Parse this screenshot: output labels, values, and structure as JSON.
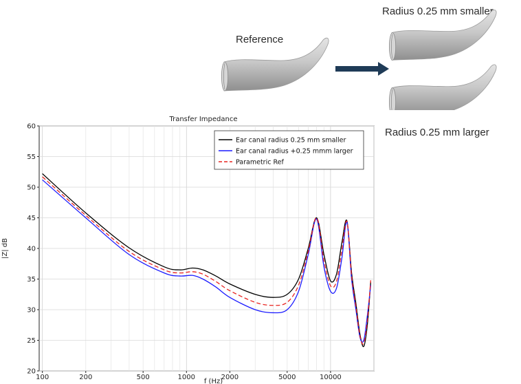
{
  "illustration": {
    "reference_label": "Reference",
    "smaller_label": "Radius 0.25 mm smaller",
    "larger_label": "Radius 0.25 mm larger",
    "arrow_color": "#1f3b57",
    "canal_color": "#c9c9c9"
  },
  "chart_data": {
    "type": "line",
    "title": "Transfer Impedance",
    "xlabel": "f (Hz)",
    "ylabel": "|Z| dB",
    "xscale": "log",
    "xlim": [
      95,
      20000
    ],
    "ylim": [
      20,
      60
    ],
    "x_ticks": [
      100,
      200,
      500,
      1000,
      2000,
      5000,
      10000
    ],
    "y_ticks": [
      20,
      25,
      30,
      35,
      40,
      45,
      50,
      55,
      60
    ],
    "grid": true,
    "legend_position": "top-right",
    "series": [
      {
        "name": "Ear canal radius 0.25 mm smaller",
        "color": "#000000",
        "dash": "solid",
        "x": [
          100,
          200,
          400,
          700,
          900,
          1100,
          1300,
          1600,
          2000,
          3000,
          4000,
          5000,
          6000,
          7000,
          8000,
          9000,
          10000,
          11000,
          12000,
          13000,
          14000,
          15000,
          16000,
          17000,
          18000,
          19000
        ],
        "y": [
          52.2,
          45.8,
          40.1,
          37.0,
          36.5,
          36.8,
          36.5,
          35.5,
          34.2,
          32.5,
          32.0,
          32.5,
          35.0,
          40.0,
          45.0,
          39.0,
          34.7,
          35.8,
          41.0,
          44.5,
          36.0,
          31.0,
          26.0,
          24.0,
          27.5,
          34.5
        ]
      },
      {
        "name": "Ear canal radius +0.25 mmm larger",
        "color": "#1a1aff",
        "dash": "solid",
        "x": [
          100,
          200,
          400,
          700,
          900,
          1100,
          1300,
          1600,
          2000,
          3000,
          4000,
          5000,
          6000,
          7000,
          8000,
          9000,
          10000,
          11000,
          12000,
          13000,
          14000,
          15000,
          16000,
          17000,
          18000,
          19000
        ],
        "y": [
          51.2,
          45.0,
          39.0,
          36.0,
          35.5,
          35.6,
          35.0,
          33.7,
          32.0,
          30.0,
          29.5,
          30.0,
          33.0,
          39.0,
          44.8,
          37.0,
          33.0,
          33.5,
          38.5,
          44.3,
          35.0,
          30.0,
          25.5,
          25.0,
          29.0,
          34.0
        ]
      },
      {
        "name": "Parametric Ref",
        "color": "#e8231f",
        "dash": "dashed",
        "x": [
          100,
          200,
          400,
          700,
          900,
          1100,
          1300,
          1600,
          2000,
          3000,
          4000,
          5000,
          6000,
          7000,
          8000,
          9000,
          10000,
          11000,
          12000,
          13000,
          14000,
          15000,
          16000,
          17000,
          18000,
          19000
        ],
        "y": [
          51.7,
          45.4,
          39.5,
          36.5,
          36.0,
          36.2,
          35.8,
          34.6,
          33.1,
          31.2,
          30.7,
          31.2,
          34.0,
          39.5,
          45.0,
          38.0,
          33.9,
          34.6,
          39.8,
          44.4,
          35.5,
          30.5,
          25.7,
          24.5,
          28.2,
          34.8
        ]
      }
    ]
  }
}
